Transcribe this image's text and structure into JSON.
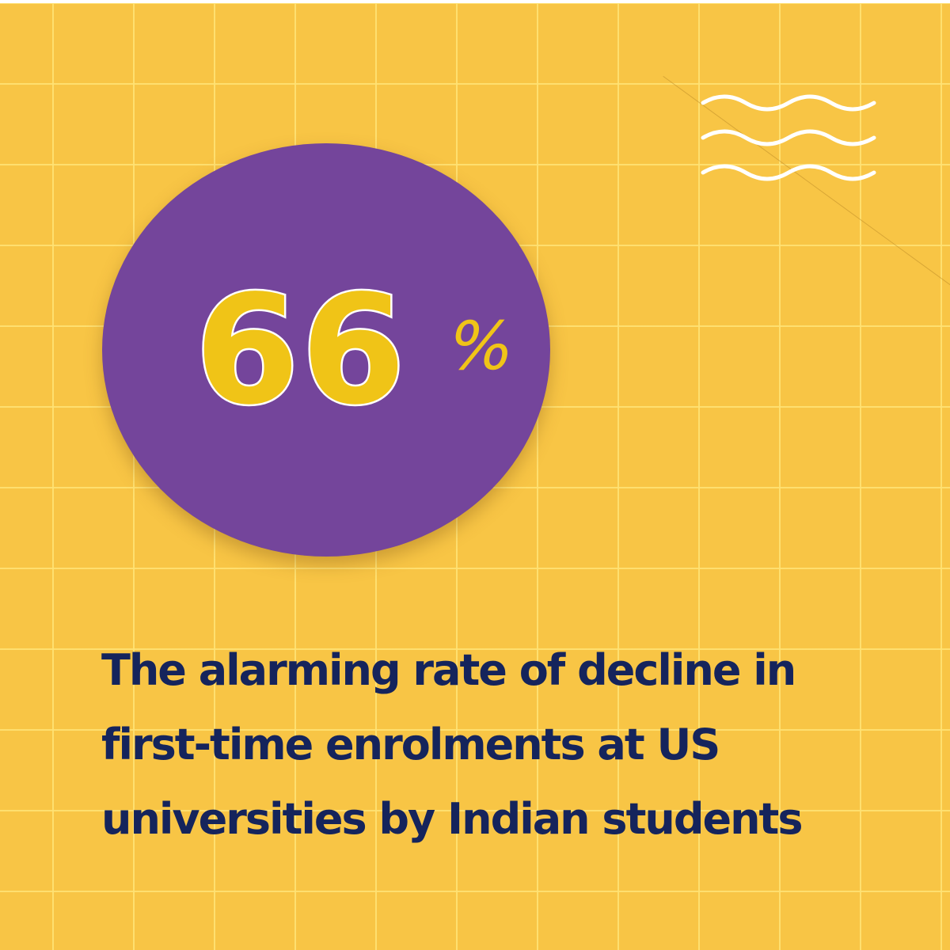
{
  "stat": {
    "number": "66",
    "unit": "%"
  },
  "caption": {
    "lines": [
      "The alarming rate of decline in",
      "first-time enrolments at US",
      "universities by Indian students"
    ]
  },
  "decoration": {
    "icon": "wave-lines-icon"
  },
  "colors": {
    "background": "#f8c545",
    "grid": "#ffe273",
    "circle": "#74459b",
    "number": "#f0c417",
    "caption": "#15245c",
    "waves": "#ffffff"
  }
}
